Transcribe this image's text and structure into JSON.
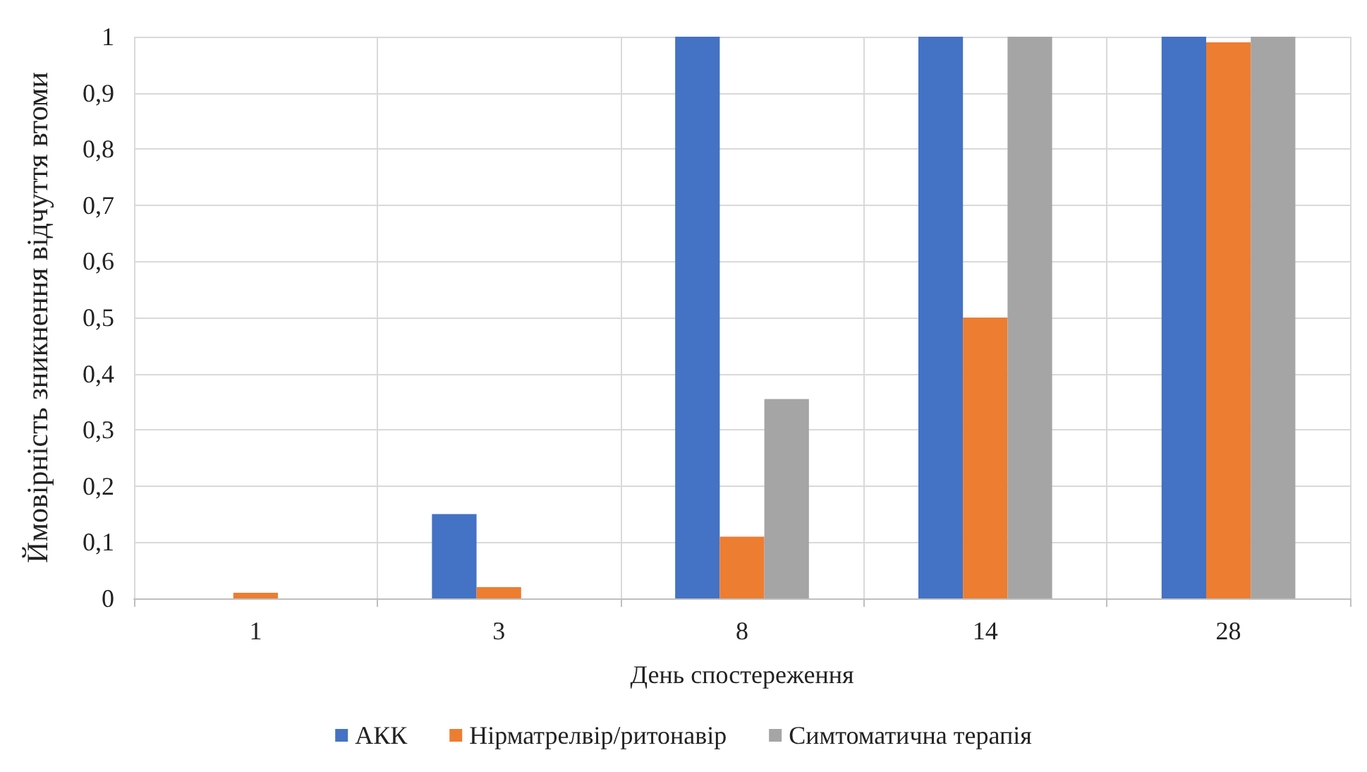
{
  "chart_data": {
    "type": "bar",
    "xlabel": "День спостереження",
    "ylabel": "Ймовірність зникнення відчуття втоми",
    "categories": [
      "1",
      "3",
      "8",
      "14",
      "28"
    ],
    "series": [
      {
        "name": "АКК",
        "color": "#4472c4",
        "values": [
          0,
          0.15,
          1,
          1,
          1
        ]
      },
      {
        "name": "Нірматрелвір/ритонавір",
        "color": "#ed7d31",
        "values": [
          0.01,
          0.02,
          0.11,
          0.5,
          0.99
        ]
      },
      {
        "name": "Симтоматична терапія",
        "color": "#a5a5a5",
        "values": [
          0,
          0,
          0.355,
          1,
          1
        ]
      }
    ],
    "ylim": [
      0,
      1
    ],
    "yticks": [
      0,
      {
        "value": 0.1,
        "label": "0,1"
      },
      {
        "value": 0.2,
        "label": "0,2"
      },
      {
        "value": 0.3,
        "label": "0,3"
      },
      {
        "value": 0.4,
        "label": "0,4"
      },
      {
        "value": 0.5,
        "label": "0,5"
      },
      {
        "value": 0.6,
        "label": "0,6"
      },
      {
        "value": 0.7,
        "label": "0,7"
      },
      {
        "value": 0.8,
        "label": "0,8"
      },
      {
        "value": 0.9,
        "label": "0,9"
      },
      1
    ],
    "grid": true,
    "legend": "bottom"
  }
}
